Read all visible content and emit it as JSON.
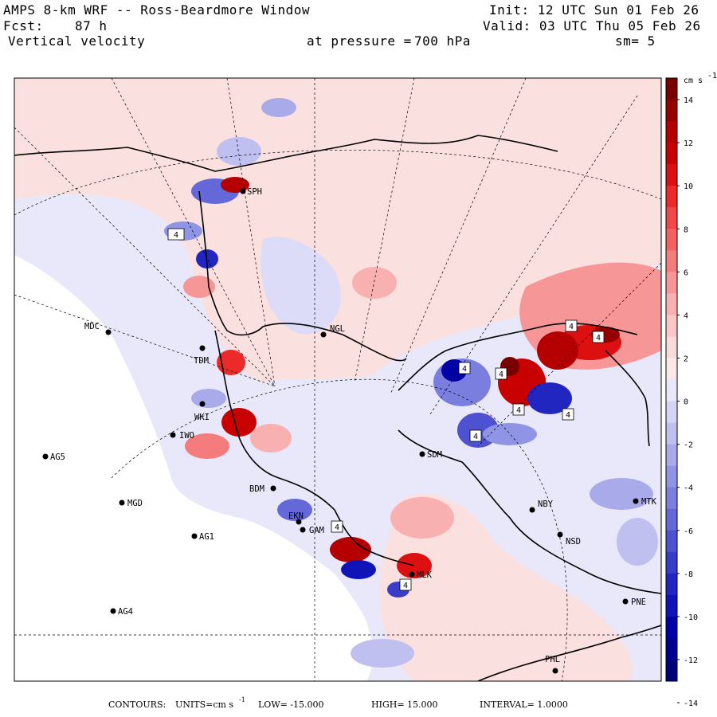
{
  "header": {
    "title": "AMPS 8-km WRF -- Ross-Beardmore Window",
    "init": "Init: 12 UTC Sun 01 Feb 26",
    "fcst_label": "Fcst:",
    "fcst_value": "87 h",
    "valid": "Valid: 03 UTC Thu 05 Feb 26",
    "field": "Vertical velocity",
    "pressure_label": "at pressure =",
    "pressure_value": "700 hPa",
    "smoothing": "sm= 5"
  },
  "colorbar": {
    "units": "cm s",
    "units_exp": "-1",
    "ticks": [
      "14",
      "12",
      "10",
      "8",
      "6",
      "4",
      "2",
      "0",
      "-2",
      "-4",
      "-6",
      "-8",
      "-10",
      "-12",
      "-14"
    ],
    "colors": [
      "#7a0000",
      "#960000",
      "#b40000",
      "#c80000",
      "#dc1010",
      "#ec2a2a",
      "#f04848",
      "#f26262",
      "#f47c7c",
      "#f69696",
      "#f8b0b0",
      "#fac6c6",
      "#fbdada",
      "#fde8e8",
      "#e8e8fa",
      "#d4d4f6",
      "#bfc0f0",
      "#a8aaea",
      "#9094e4",
      "#7a7ede",
      "#6468d8",
      "#4e52d0",
      "#383cc8",
      "#2226c0",
      "#1014b8",
      "#0000a8",
      "#000090",
      "#00007a"
    ]
  },
  "stations": [
    {
      "id": "MDC"
    },
    {
      "id": "TDM"
    },
    {
      "id": "WKI"
    },
    {
      "id": "IWO"
    },
    {
      "id": "AG5"
    },
    {
      "id": "MGD"
    },
    {
      "id": "AG1"
    },
    {
      "id": "AG4"
    },
    {
      "id": "BDM"
    },
    {
      "id": "EKN"
    },
    {
      "id": "GAM"
    },
    {
      "id": "MLK"
    },
    {
      "id": "NGL"
    },
    {
      "id": "SDM"
    },
    {
      "id": "NBY"
    },
    {
      "id": "NSD"
    },
    {
      "id": "MTK"
    },
    {
      "id": "PNE"
    },
    {
      "id": "PHL"
    },
    {
      "id": "SPH"
    }
  ],
  "contour_labels": [
    "4",
    "4",
    "4",
    "4",
    "4",
    "4",
    "4",
    "4",
    "4",
    "4"
  ],
  "footer": {
    "contours_label": "CONTOURS:",
    "units": "UNITS=cm s",
    "units_exp": "-1",
    "low": "LOW= -15.000",
    "high": "HIGH= 15.000",
    "interval": "INTERVAL= 1.0000"
  },
  "colors": {
    "positive": "#f6c8c8",
    "negative": "#d6d8f6",
    "background": "#e8e8fa",
    "mask": "#ffffff"
  }
}
